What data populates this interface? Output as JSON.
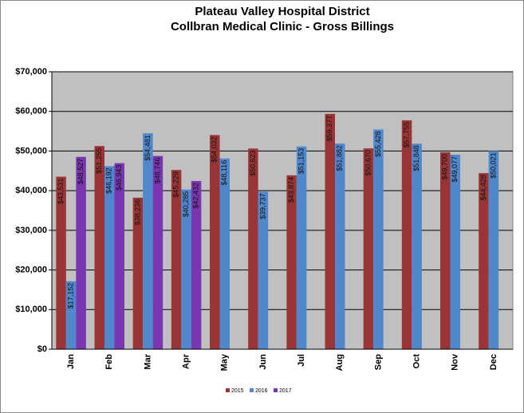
{
  "chart_data": {
    "type": "bar",
    "title": "Plateau Valley Hospital District",
    "subtitle": "Collbran Medical Clinic - Gross Billings",
    "categories": [
      "Jan",
      "Feb",
      "Mar",
      "Apr",
      "May",
      "Jun",
      "Jul",
      "Aug",
      "Sep",
      "Oct",
      "Nov",
      "Dec"
    ],
    "series": [
      {
        "name": "2015",
        "color": "#9b3535",
        "values": [
          43531,
          51255,
          38236,
          45229,
          54032,
          50623,
          43874,
          59377,
          50670,
          57755,
          49700,
          44428
        ],
        "value_labels": [
          "$43,531",
          "$51,255",
          "$38,236",
          "$45,229",
          "$54,032",
          "$50,623",
          "$43,874",
          "$59,377",
          "$50,670",
          "$57,755",
          "$49,700",
          "$44,428"
        ]
      },
      {
        "name": "2016",
        "color": "#4f88cc",
        "values": [
          17152,
          46192,
          54481,
          40285,
          48116,
          39737,
          51153,
          51882,
          55428,
          51848,
          49077,
          50021
        ],
        "value_labels": [
          "$17,152",
          "$46,192",
          "$54,481",
          "$40,285",
          "$48,116",
          "$39,737",
          "$51,153",
          "$51,882",
          "$55,428",
          "$51,848",
          "$49,077",
          "$50,021"
        ]
      },
      {
        "name": "2017",
        "color": "#7a35b0",
        "values": [
          48527,
          46943,
          48746,
          42432,
          null,
          null,
          null,
          null,
          null,
          null,
          null,
          null
        ],
        "value_labels": [
          "$48,527",
          "$46,943",
          "$48,746",
          "$42,432",
          null,
          null,
          null,
          null,
          null,
          null,
          null,
          null
        ]
      }
    ],
    "ylim": [
      0,
      70000
    ],
    "yticks": [
      {
        "value": 0,
        "label": "$0"
      },
      {
        "value": 10000,
        "label": "$10,000"
      },
      {
        "value": 20000,
        "label": "$20,000"
      },
      {
        "value": 30000,
        "label": "$30,000"
      },
      {
        "value": 40000,
        "label": "$40,000"
      },
      {
        "value": 50000,
        "label": "$50,000"
      },
      {
        "value": 60000,
        "label": "$60,000"
      },
      {
        "value": 70000,
        "label": "$70,000"
      }
    ],
    "grid": true,
    "legend": "bottom"
  }
}
